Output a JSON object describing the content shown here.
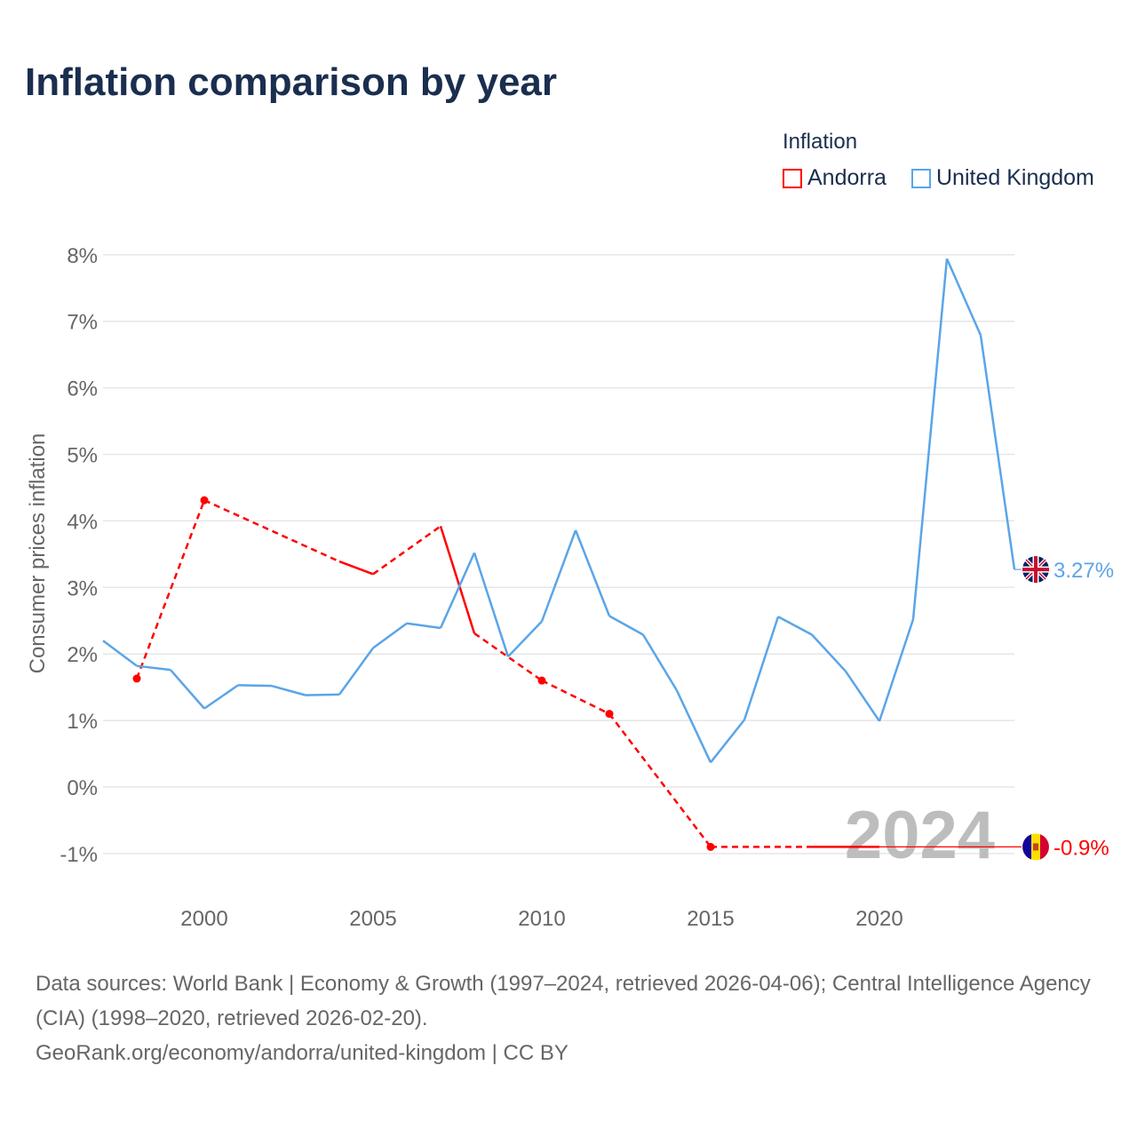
{
  "chart_data": {
    "type": "line",
    "title": "Inflation comparison by year",
    "ylabel": "Consumer prices inflation",
    "xlabel": "",
    "xlim": [
      1997,
      2024
    ],
    "ylim": [
      -1.5,
      8.2
    ],
    "x_ticks": [
      2000,
      2005,
      2010,
      2015,
      2020
    ],
    "y_ticks": [
      -1,
      0,
      1,
      2,
      3,
      4,
      5,
      6,
      7,
      8
    ],
    "y_tick_labels": [
      "-1%",
      "0%",
      "1%",
      "2%",
      "3%",
      "4%",
      "5%",
      "6%",
      "7%",
      "8%"
    ],
    "grid": true,
    "legend_title": "Inflation",
    "legend_position": "top-right",
    "watermark_year": "2024",
    "series": [
      {
        "name": "Andorra",
        "color": "#ff0000",
        "x": [
          1998,
          2000,
          2004,
          2005,
          2007,
          2008,
          2010,
          2012,
          2015,
          2018,
          2019,
          2020
        ],
        "values": [
          1.63,
          4.31,
          3.39,
          3.2,
          3.92,
          2.31,
          1.6,
          1.1,
          -0.9,
          -0.9,
          -0.9,
          -0.9
        ],
        "end_label": "-0.9%",
        "end_value": -0.9
      },
      {
        "name": "United Kingdom",
        "color": "#5aa5e8",
        "x": [
          1997,
          1998,
          1999,
          2000,
          2001,
          2002,
          2003,
          2004,
          2005,
          2006,
          2007,
          2008,
          2009,
          2010,
          2011,
          2012,
          2013,
          2014,
          2015,
          2016,
          2017,
          2018,
          2019,
          2020,
          2021,
          2022,
          2023,
          2024
        ],
        "values": [
          2.2,
          1.82,
          1.76,
          1.18,
          1.53,
          1.52,
          1.38,
          1.39,
          2.09,
          2.46,
          2.39,
          3.52,
          1.96,
          2.49,
          3.86,
          2.57,
          2.29,
          1.45,
          0.37,
          1.01,
          2.56,
          2.29,
          1.74,
          0.99,
          2.52,
          7.94,
          6.79,
          3.27
        ],
        "end_label": "3.27%",
        "end_value": 3.27
      }
    ]
  },
  "footer": {
    "line1": "Data sources: World Bank | Economy & Growth (1997–2024, retrieved 2026-04-06); Central Intelligence Agency (CIA) (1998–2020, retrieved 2026-02-20).",
    "line2": "GeoRank.org/economy/andorra/united-kingdom | CC BY"
  }
}
